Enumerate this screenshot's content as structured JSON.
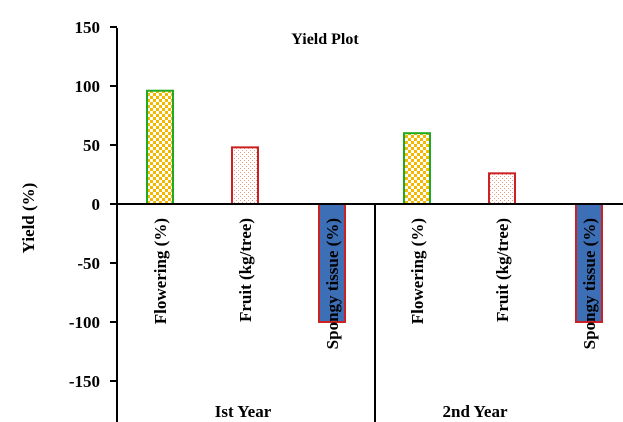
{
  "chart_data": {
    "type": "bar",
    "title": "Yield  Plot",
    "ylabel": "Yield (%)",
    "ylim": [
      -150,
      150
    ],
    "yticks": [
      150,
      100,
      50,
      0,
      -50,
      -100,
      -150
    ],
    "groups": [
      {
        "name": "Ist Year",
        "bars": [
          {
            "category": "Flowering (%)",
            "value": 96,
            "style": "flowering"
          },
          {
            "category": "Fruit (kg/tree)",
            "value": 48,
            "style": "fruit"
          },
          {
            "category": "Spongy tissue (%)",
            "value": -100,
            "style": "spongy"
          }
        ]
      },
      {
        "name": "2nd Year",
        "bars": [
          {
            "category": "Flowering (%)",
            "value": 60,
            "style": "flowering"
          },
          {
            "category": "Fruit (kg/tree)",
            "value": 26,
            "style": "fruit"
          },
          {
            "category": "Spongy tissue (%)",
            "value": -100,
            "style": "spongy"
          }
        ]
      }
    ],
    "colors": {
      "flowering_fill": "#f5b800",
      "flowering_border": "#1faa1f",
      "fruit_fill": "#f3c4b8",
      "fruit_border": "#cc2222",
      "spongy_fill": "#3d6fb6",
      "spongy_border": "#cc2222"
    },
    "grid": false,
    "legend": "none"
  }
}
